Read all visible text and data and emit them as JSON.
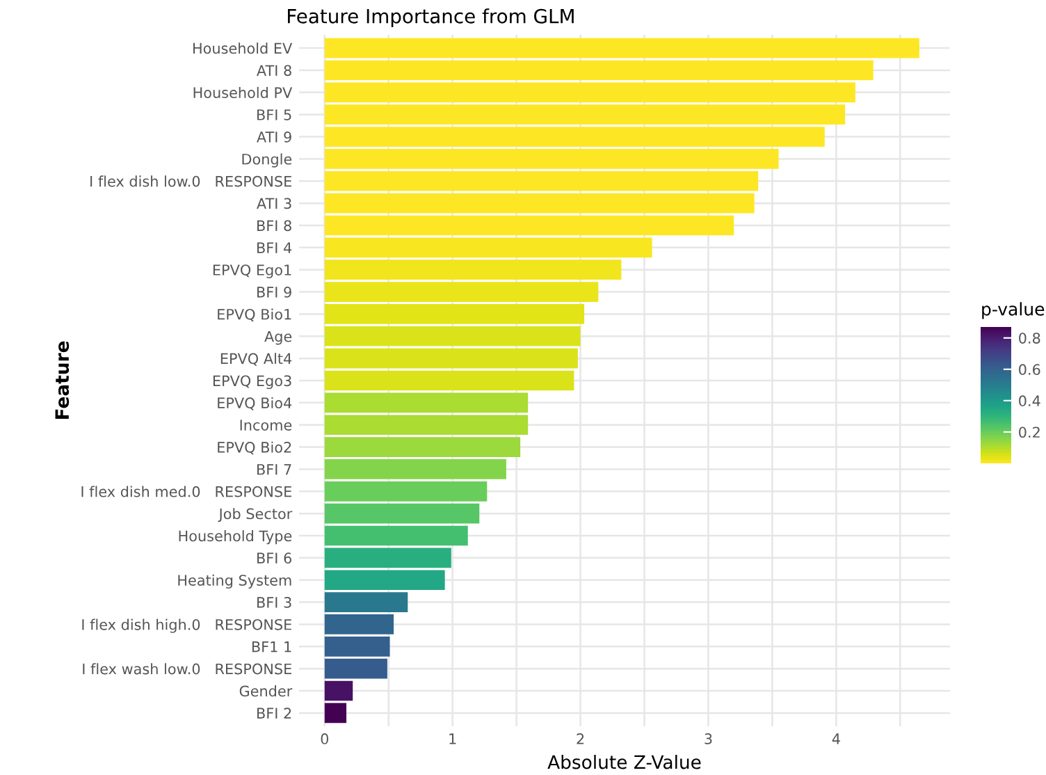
{
  "chart_data": {
    "type": "bar",
    "orientation": "horizontal",
    "title": "Feature Importance from GLM",
    "xlabel": "Absolute Z-Value",
    "ylabel": "Feature",
    "clabel": "p-value",
    "categories": [
      "Household EV",
      "ATI 8",
      "Household PV",
      "BFI 5",
      "ATI 9",
      "Dongle",
      "I flex dish low.0   RESPONSE",
      "ATI 3",
      "BFI 8",
      "BFI 4",
      "EPVQ Ego1",
      "BFI 9",
      "EPVQ Bio1",
      "Age",
      "EPVQ Alt4",
      "EPVQ Ego3",
      "EPVQ Bio4",
      "Income",
      "EPVQ Bio2",
      "BFI 7",
      "I flex dish med.0   RESPONSE",
      "Job Sector",
      "Household Type",
      "BFI 6",
      "Heating System",
      "BFI 3",
      "I flex dish high.0   RESPONSE",
      "BF1 1",
      "I flex wash low.0   RESPONSE",
      "Gender",
      "BFI 2"
    ],
    "values": [
      4.65,
      4.29,
      4.15,
      4.07,
      3.91,
      3.55,
      3.39,
      3.36,
      3.2,
      2.56,
      2.32,
      2.14,
      2.03,
      2.0,
      1.98,
      1.95,
      1.59,
      1.59,
      1.53,
      1.42,
      1.27,
      1.21,
      1.12,
      0.99,
      0.94,
      0.65,
      0.54,
      0.51,
      0.49,
      0.22,
      0.17
    ],
    "cvalues": [
      0.0,
      0.0,
      0.0,
      0.0,
      0.0,
      0.0,
      0.0,
      0.0,
      0.0,
      0.01,
      0.02,
      0.03,
      0.04,
      0.05,
      0.05,
      0.05,
      0.11,
      0.11,
      0.13,
      0.16,
      0.2,
      0.23,
      0.26,
      0.32,
      0.35,
      0.52,
      0.59,
      0.61,
      0.62,
      0.83,
      0.87
    ],
    "clim": [
      0.0,
      0.87
    ],
    "cticks": [
      0.2,
      0.4,
      0.6,
      0.8
    ],
    "xlim": [
      -0.2,
      4.89
    ],
    "xticks": [
      0,
      {
        "value": 0.5,
        "label": null
      },
      1,
      {
        "value": 1.5,
        "label": null
      },
      2,
      {
        "value": 2.5,
        "label": null
      },
      3,
      {
        "value": 3.5,
        "label": null
      },
      4,
      {
        "value": 4.5,
        "label": null
      }
    ],
    "grid": true
  }
}
